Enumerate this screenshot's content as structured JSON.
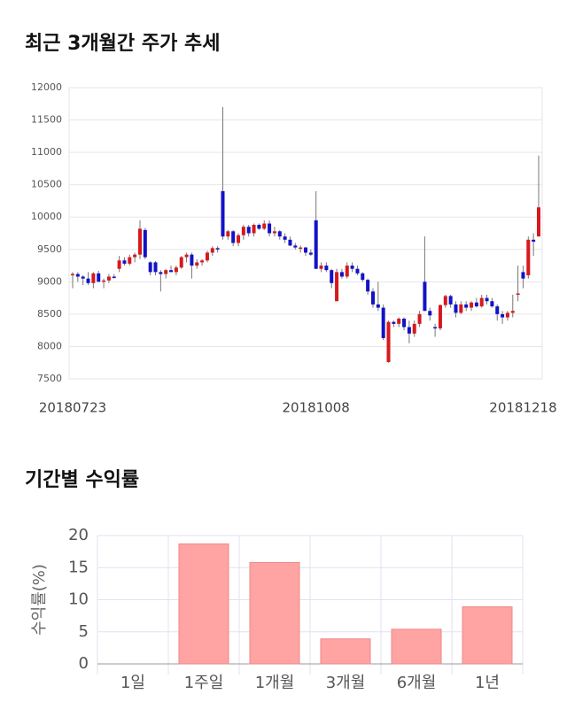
{
  "chart_data": [
    {
      "type": "candlestick",
      "title": "최근 3개월간 주가 추세",
      "categories": [
        "20180723",
        null,
        null,
        null,
        null,
        null,
        null,
        null,
        null,
        null,
        null,
        null,
        null,
        null,
        null,
        null,
        null,
        null,
        null,
        null,
        null,
        null,
        null,
        null,
        null,
        null,
        null,
        null,
        null,
        null,
        null,
        null,
        null,
        null,
        null,
        null,
        null,
        null,
        null,
        null,
        null,
        null,
        null,
        null,
        null,
        null,
        null,
        "20181008",
        null,
        null,
        null,
        null,
        null,
        null,
        null,
        null,
        null,
        null,
        null,
        null,
        null,
        null,
        null,
        null,
        null,
        null,
        null,
        null,
        null,
        null,
        null,
        null,
        null,
        null,
        null,
        null,
        null,
        null,
        null,
        null,
        null,
        null,
        null,
        null,
        null,
        null,
        null,
        "20181218",
        null,
        null,
        null
      ],
      "open": [
        9100,
        9120,
        9080,
        9050,
        8980,
        9130,
        9000,
        9020,
        9080,
        9200,
        9330,
        9280,
        9380,
        9420,
        9800,
        9300,
        9300,
        9150,
        9120,
        9180,
        9150,
        9220,
        9380,
        9420,
        9250,
        9300,
        9330,
        9450,
        9520,
        10400,
        9700,
        9780,
        9600,
        9720,
        9850,
        9750,
        9880,
        9820,
        9900,
        9750,
        9780,
        9700,
        9650,
        9560,
        9530,
        9530,
        9450,
        9950,
        9200,
        9250,
        9180,
        8700,
        9150,
        9080,
        9250,
        9200,
        9130,
        9030,
        8850,
        8650,
        8600,
        7760,
        8380,
        8350,
        8430,
        8300,
        8200,
        8350,
        9000,
        8550,
        8300,
        8280,
        8640,
        8780,
        8650,
        8520,
        8650,
        8600,
        8680,
        8620,
        8750,
        8700,
        8620,
        8500,
        8450,
        8520,
        8800,
        9150,
        9100,
        9650,
        9700
      ],
      "high": [
        9150,
        9150,
        9100,
        9150,
        9150,
        9170,
        9050,
        9120,
        9120,
        9400,
        9380,
        9420,
        9450,
        9950,
        9830,
        9320,
        9320,
        9180,
        9200,
        9250,
        9250,
        9400,
        9450,
        9450,
        9350,
        9350,
        9480,
        9550,
        9550,
        11700,
        9800,
        9800,
        9750,
        9880,
        9880,
        9900,
        9900,
        9950,
        9950,
        9850,
        9800,
        9750,
        9700,
        9600,
        9560,
        9540,
        9500,
        10400,
        9300,
        9300,
        9200,
        9200,
        9200,
        9300,
        9300,
        9250,
        9150,
        9050,
        8900,
        9000,
        8650,
        8400,
        8400,
        8450,
        8450,
        8400,
        8400,
        8550,
        9700,
        8600,
        8350,
        8650,
        8800,
        8800,
        8700,
        8700,
        8700,
        8700,
        8750,
        8800,
        8800,
        8750,
        8650,
        8550,
        8550,
        8800,
        9250,
        9250,
        9700,
        9750,
        10950
      ],
      "low": [
        8900,
        9000,
        8950,
        8950,
        8900,
        9000,
        8900,
        8980,
        9050,
        9150,
        9250,
        9250,
        9300,
        9350,
        9350,
        9100,
        9100,
        8850,
        9050,
        9150,
        9100,
        9200,
        9300,
        9050,
        9200,
        9250,
        9300,
        9400,
        9450,
        9650,
        9650,
        9550,
        9550,
        9650,
        9700,
        9700,
        9800,
        9800,
        9700,
        9700,
        9650,
        9600,
        9550,
        9500,
        9450,
        9400,
        9400,
        9200,
        9150,
        9150,
        8900,
        8700,
        9050,
        9050,
        9150,
        9100,
        9000,
        8800,
        8600,
        8550,
        8100,
        7750,
        8300,
        8300,
        8250,
        8050,
        8150,
        8300,
        8550,
        8400,
        8150,
        8250,
        8600,
        8600,
        8450,
        8500,
        8550,
        8550,
        8600,
        8600,
        8650,
        8600,
        8400,
        8350,
        8400,
        8450,
        8700,
        8900,
        9050,
        9400,
        9700
      ],
      "close": [
        9120,
        9080,
        9050,
        8980,
        9130,
        9000,
        9020,
        9080,
        9070,
        9330,
        9280,
        9380,
        9420,
        9820,
        9380,
        9150,
        9150,
        9120,
        9180,
        9150,
        9220,
        9380,
        9420,
        9250,
        9300,
        9330,
        9450,
        9520,
        9500,
        9700,
        9780,
        9600,
        9720,
        9850,
        9750,
        9880,
        9820,
        9900,
        9750,
        9780,
        9700,
        9650,
        9560,
        9530,
        9530,
        9450,
        9420,
        9200,
        9250,
        9180,
        8980,
        9150,
        9080,
        9250,
        9200,
        9130,
        9030,
        8850,
        8650,
        8600,
        8130,
        8380,
        8350,
        8430,
        8300,
        8200,
        8350,
        8500,
        8550,
        8480,
        8280,
        8640,
        8780,
        8650,
        8520,
        8650,
        8600,
        8680,
        8620,
        8750,
        8700,
        8620,
        8500,
        8450,
        8520,
        8550,
        8820,
        9050,
        9650,
        9620,
        10150
      ],
      "up_color": "#d7191c",
      "down_color": "#1212c8",
      "ylim": [
        7500,
        12000
      ],
      "yticks": [
        7500,
        8000,
        8500,
        9000,
        9500,
        10000,
        10500,
        11000,
        11500,
        12000
      ],
      "grid": true
    },
    {
      "type": "bar",
      "title": "기간별 수익률",
      "ylabel": "수익률(%)",
      "categories": [
        "1일",
        "1주일",
        "1개월",
        "3개월",
        "6개월",
        "1년"
      ],
      "values": [
        0,
        18.7,
        15.8,
        3.9,
        5.4,
        8.9
      ],
      "color": "#ffa3a3",
      "ylim": [
        0,
        20
      ],
      "yticks": [
        0,
        5,
        10,
        15,
        20
      ],
      "grid": true
    }
  ]
}
